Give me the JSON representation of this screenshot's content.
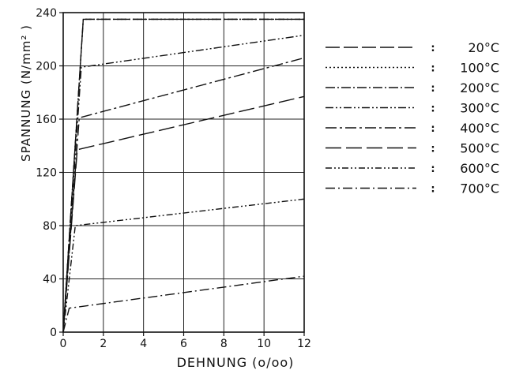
{
  "chart_data": {
    "type": "line",
    "xlabel": "DEHNUNG (o/oo)",
    "ylabel": "SPANNUNG (N/mm² )",
    "xlim": [
      0,
      12
    ],
    "ylim": [
      0,
      240
    ],
    "x_ticks": [
      0,
      2,
      4,
      6,
      8,
      10,
      12
    ],
    "y_ticks": [
      0,
      40,
      80,
      120,
      160,
      200,
      240
    ],
    "x_tick_labels": [
      "0",
      "2",
      "4",
      "6",
      "8",
      "10",
      "12"
    ],
    "y_tick_labels": [
      "0",
      "40",
      "80",
      "120",
      "160",
      "200",
      "240"
    ],
    "grid": true,
    "legend_position": "right",
    "series": [
      {
        "name": "20°C",
        "dash": "18,5",
        "points": [
          [
            0,
            0
          ],
          [
            1.0,
            235
          ],
          [
            12,
            235
          ]
        ]
      },
      {
        "name": "100°C",
        "dash": "2,3",
        "points": [
          [
            0,
            0
          ],
          [
            1.0,
            235
          ],
          [
            12,
            235
          ]
        ]
      },
      {
        "name": "200°C",
        "dash": "12,3,2,3",
        "points": [
          [
            0,
            0
          ],
          [
            1.0,
            235
          ],
          [
            12,
            235
          ]
        ]
      },
      {
        "name": "300°C",
        "dash": "10,3,2,3,2,3",
        "points": [
          [
            0,
            0
          ],
          [
            0.9,
            199
          ],
          [
            12,
            223
          ]
        ]
      },
      {
        "name": "400°C",
        "dash": "14,4,3,4",
        "points": [
          [
            0,
            0
          ],
          [
            0.8,
            161
          ],
          [
            12,
            206
          ]
        ]
      },
      {
        "name": "500°C",
        "dash": "20,6",
        "points": [
          [
            0,
            0
          ],
          [
            0.7,
            137
          ],
          [
            12,
            177
          ]
        ]
      },
      {
        "name": "600°C",
        "dash": "8,3,2,3,2,3",
        "points": [
          [
            0,
            0
          ],
          [
            0.6,
            80
          ],
          [
            12,
            100
          ]
        ]
      },
      {
        "name": "700°C",
        "dash": "12,4,2,4",
        "points": [
          [
            0,
            0
          ],
          [
            0.3,
            18
          ],
          [
            12,
            42
          ]
        ]
      }
    ]
  },
  "legend": {
    "separator": ":",
    "items": [
      "20°C",
      "100°C",
      "200°C",
      "300°C",
      "400°C",
      "500°C",
      "600°C",
      "700°C"
    ]
  }
}
